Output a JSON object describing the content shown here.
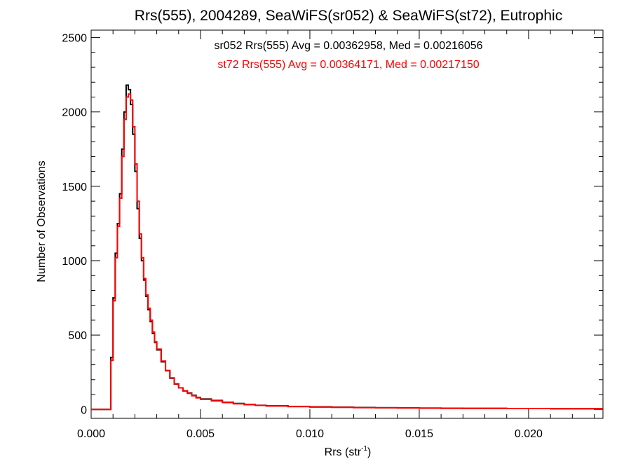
{
  "chart_data": {
    "type": "line",
    "title": "Rrs(555), 2004289, SeaWiFS(sr052) & SeaWiFS(st72), Eutrophic",
    "xlabel": "Rrs (str",
    "xlabel_sup": "-1",
    "xlabel_close": ")",
    "ylabel": "Number of Observations",
    "xlim": [
      0.0,
      0.0234
    ],
    "ylim": [
      -60,
      2550
    ],
    "x_ticks": [
      0.0,
      0.005,
      0.01,
      0.015,
      0.02
    ],
    "x_tick_labels": [
      "0.000",
      "0.005",
      "0.010",
      "0.015",
      "0.020"
    ],
    "y_ticks": [
      0,
      500,
      1000,
      1500,
      2000,
      2500
    ],
    "y_tick_labels": [
      "0",
      "500",
      "1000",
      "1500",
      "2000",
      "2500"
    ],
    "line_style": "step histogram",
    "grid": false,
    "legend_position": "top-center",
    "series": [
      {
        "name": "sr052",
        "color": "#000000",
        "legend": "sr052 Rrs(555) Avg = 0.00362958, Med = 0.00216056",
        "x": [
          0.0,
          0.0008,
          0.0009,
          0.001,
          0.0011,
          0.0012,
          0.0013,
          0.0014,
          0.0015,
          0.0016,
          0.0017,
          0.0018,
          0.0019,
          0.002,
          0.0021,
          0.0022,
          0.0023,
          0.0024,
          0.0025,
          0.0026,
          0.0027,
          0.0028,
          0.0029,
          0.003,
          0.0032,
          0.0034,
          0.0036,
          0.0038,
          0.004,
          0.0042,
          0.0044,
          0.0046,
          0.0048,
          0.005,
          0.0055,
          0.006,
          0.0065,
          0.007,
          0.0075,
          0.008,
          0.009,
          0.01,
          0.011,
          0.012,
          0.013,
          0.014,
          0.015,
          0.016,
          0.017,
          0.018,
          0.019,
          0.02,
          0.021,
          0.022,
          0.0234
        ],
        "y": [
          0,
          0,
          350,
          750,
          1050,
          1250,
          1450,
          1750,
          2000,
          2180,
          2150,
          2050,
          1850,
          1600,
          1350,
          1150,
          1000,
          870,
          760,
          670,
          590,
          510,
          450,
          400,
          320,
          260,
          210,
          170,
          145,
          125,
          110,
          95,
          80,
          70,
          60,
          48,
          40,
          33,
          28,
          24,
          20,
          17,
          15,
          13,
          11,
          10,
          9,
          8,
          7,
          7,
          6,
          6,
          5,
          5,
          5
        ]
      },
      {
        "name": "st72",
        "color": "#ff0000",
        "legend": "st72 Rrs(555) Avg = 0.00364171, Med = 0.00217150",
        "x": [
          0.0,
          0.0008,
          0.0009,
          0.001,
          0.0011,
          0.0012,
          0.0013,
          0.0014,
          0.0015,
          0.0016,
          0.0017,
          0.0018,
          0.0019,
          0.002,
          0.0021,
          0.0022,
          0.0023,
          0.0024,
          0.0025,
          0.0026,
          0.0027,
          0.0028,
          0.0029,
          0.003,
          0.0032,
          0.0034,
          0.0036,
          0.0038,
          0.004,
          0.0042,
          0.0044,
          0.0046,
          0.0048,
          0.005,
          0.0055,
          0.006,
          0.0065,
          0.007,
          0.0075,
          0.008,
          0.009,
          0.01,
          0.011,
          0.012,
          0.013,
          0.014,
          0.015,
          0.016,
          0.017,
          0.018,
          0.019,
          0.02,
          0.021,
          0.022,
          0.0234
        ],
        "y": [
          0,
          0,
          330,
          730,
          1020,
          1230,
          1420,
          1700,
          1950,
          2100,
          2120,
          2080,
          1900,
          1650,
          1400,
          1180,
          1020,
          880,
          770,
          680,
          600,
          520,
          455,
          405,
          325,
          262,
          212,
          172,
          145,
          124,
          108,
          92,
          78,
          68,
          57,
          46,
          38,
          32,
          27,
          23,
          19,
          16,
          14,
          12,
          11,
          10,
          9,
          8,
          7,
          7,
          6,
          6,
          5,
          5,
          5
        ]
      }
    ]
  }
}
